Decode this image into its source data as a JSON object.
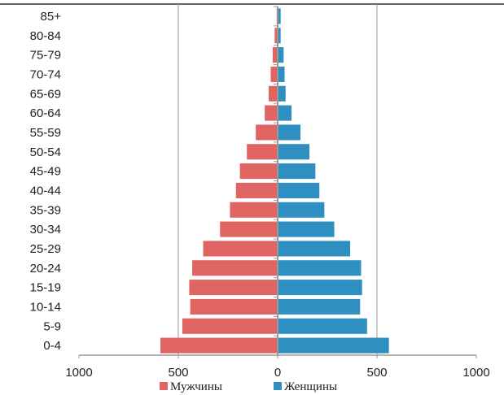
{
  "chart_data": {
    "type": "bar",
    "orientation": "horizontal-pyramid",
    "categories": [
      "0-4",
      "5-9",
      "10-14",
      "15-19",
      "20-24",
      "25-29",
      "30-34",
      "35-39",
      "40-44",
      "45-49",
      "50-54",
      "55-59",
      "60-64",
      "65-69",
      "70-74",
      "75-79",
      "80-84",
      "85+"
    ],
    "series": [
      {
        "name": "Мужчины",
        "side": "left",
        "color": "#e06461",
        "values": [
          590,
          480,
          440,
          445,
          430,
          375,
          290,
          240,
          210,
          190,
          155,
          110,
          65,
          45,
          35,
          25,
          15,
          5
        ]
      },
      {
        "name": "Женщины",
        "side": "right",
        "color": "#2e8fc0",
        "values": [
          560,
          450,
          415,
          425,
          420,
          365,
          285,
          235,
          210,
          190,
          160,
          115,
          70,
          40,
          35,
          30,
          15,
          15
        ]
      }
    ],
    "xlim": [
      -1000,
      1000
    ],
    "xticks": [
      -1000,
      -500,
      0,
      500,
      1000
    ],
    "xtick_labels": [
      "1000",
      "500",
      "0",
      "500",
      "1000"
    ],
    "grid": "vertical at ±500",
    "legend": "bottom"
  }
}
